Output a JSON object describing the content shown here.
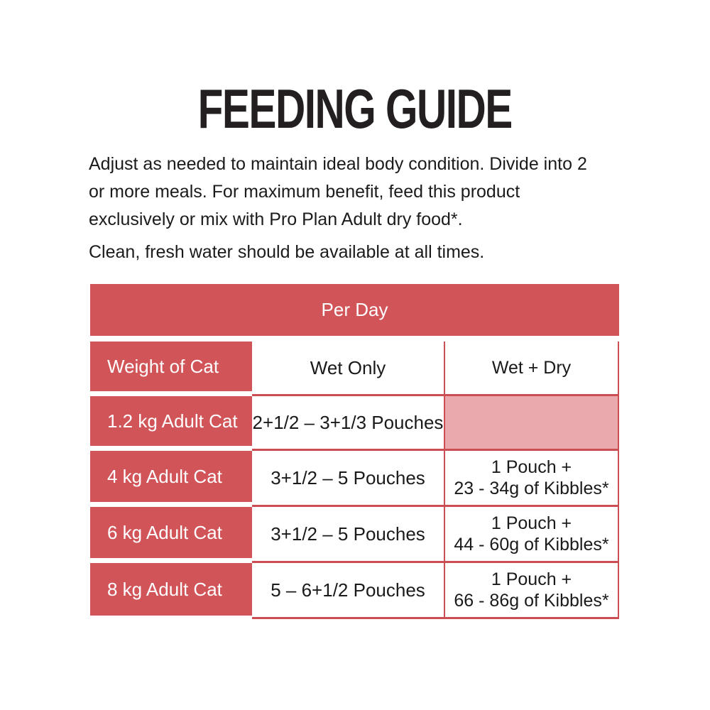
{
  "title": "FEEDING GUIDE",
  "intro": {
    "paragraph1": "Adjust as needed to maintain ideal body condition. Divide into 2\nor more meals. For maximum benefit, feed this product\nexclusively or mix with Pro Plan Adult dry food*.",
    "paragraph2": "Clean, fresh water should be available at all times."
  },
  "table": {
    "band_title": "Per Day",
    "columns": {
      "weight": "Weight of Cat",
      "wet_only": "Wet Only",
      "wet_dry": "Wet + Dry"
    },
    "rows": [
      {
        "weight": "1.2 kg Adult Cat",
        "wet_only": "2+1/2 – 3+1/3 Pouches",
        "wet_dry_line1": "",
        "wet_dry_line2": ""
      },
      {
        "weight": "4 kg Adult Cat",
        "wet_only": "3+1/2 – 5 Pouches",
        "wet_dry_line1": "1 Pouch +",
        "wet_dry_line2": "23 - 34g of Kibbles*"
      },
      {
        "weight": "6 kg Adult Cat",
        "wet_only": "3+1/2 – 5 Pouches",
        "wet_dry_line1": "1 Pouch +",
        "wet_dry_line2": "44 - 60g of Kibbles*"
      },
      {
        "weight": "8 kg Adult Cat",
        "wet_only": "5 – 6+1/2 Pouches",
        "wet_dry_line1": "1 Pouch +",
        "wet_dry_line2": "66 - 86g of Kibbles*"
      }
    ],
    "colors": {
      "header_red": "#D15459",
      "empty_cell_pink": "#EAA9AD",
      "grid_line": "#CC4E55",
      "header_text": "#FFFFFF",
      "body_text": "#1A1A1A"
    }
  }
}
